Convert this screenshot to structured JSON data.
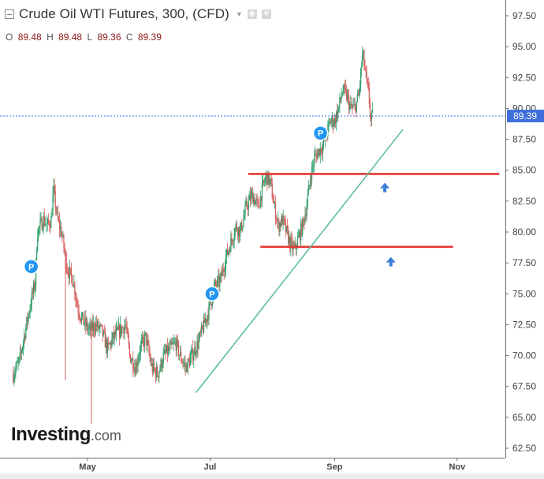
{
  "header": {
    "title": "Crude Oil WTI Futures, 300, (CFD)",
    "ohlc": [
      {
        "key": "O",
        "value": "89.48"
      },
      {
        "key": "H",
        "value": "89.48"
      },
      {
        "key": "L",
        "value": "89.36"
      },
      {
        "key": "C",
        "value": "89.39"
      }
    ]
  },
  "branding": {
    "name": "Investing",
    "suffix": ".com"
  },
  "colors": {
    "up": "#2e9e6a",
    "down": "#d65b5b",
    "support": "#e53935",
    "trendline": "#5dbf9c",
    "price_line": "#3f6fd8",
    "price_badge": "#3f6fd8",
    "arrow": "#3d7ed8",
    "marker": "#2196f3"
  },
  "chart_data": {
    "type": "candlestick",
    "ylim": [
      62.5,
      97.5
    ],
    "y_ticks": [
      "62.50",
      "65.00",
      "67.50",
      "70.00",
      "72.50",
      "75.00",
      "77.50",
      "80.00",
      "82.50",
      "85.00",
      "87.50",
      "90.00",
      "92.50",
      "95.00",
      "97.50"
    ],
    "x_ticks": [
      {
        "label": "May",
        "day": 0
      },
      {
        "label": "Jul",
        "day": 61
      },
      {
        "label": "Sep",
        "day": 123
      },
      {
        "label": "Nov",
        "day": 184
      }
    ],
    "x_range_days": [
      -37,
      205
    ],
    "last_price": {
      "value": 89.39,
      "label": "89.39"
    },
    "price_path": [
      [
        -37,
        68.5
      ],
      [
        -34,
        69.5
      ],
      [
        -31,
        72.0
      ],
      [
        -28,
        74.5
      ],
      [
        -26,
        76.0
      ],
      [
        -25,
        80.0
      ],
      [
        -22,
        81.0
      ],
      [
        -20,
        80.5
      ],
      [
        -18,
        81.0
      ],
      [
        -17,
        83.5
      ],
      [
        -15,
        81.0
      ],
      [
        -13,
        80.0
      ],
      [
        -10,
        77.0
      ],
      [
        -7,
        76.0
      ],
      [
        -5,
        74.0
      ],
      [
        -3,
        73.0
      ],
      [
        -1,
        72.5
      ],
      [
        1,
        72.0
      ],
      [
        4,
        72.5
      ],
      [
        7,
        72.0
      ],
      [
        10,
        70.5
      ],
      [
        13,
        71.5
      ],
      [
        16,
        72.0
      ],
      [
        19,
        72.5
      ],
      [
        21,
        70.0
      ],
      [
        24,
        69.0
      ],
      [
        26,
        70.5
      ],
      [
        29,
        71.5
      ],
      [
        32,
        69.0
      ],
      [
        35,
        68.5
      ],
      [
        38,
        70.0
      ],
      [
        41,
        70.5
      ],
      [
        44,
        71.0
      ],
      [
        46,
        70.0
      ],
      [
        49,
        69.0
      ],
      [
        52,
        70.0
      ],
      [
        55,
        71.0
      ],
      [
        58,
        72.5
      ],
      [
        61,
        74.0
      ],
      [
        63,
        75.5
      ],
      [
        66,
        76.0
      ],
      [
        69,
        78.0
      ],
      [
        71,
        79.0
      ],
      [
        74,
        80.5
      ],
      [
        76,
        80.0
      ],
      [
        79,
        82.0
      ],
      [
        82,
        83.0
      ],
      [
        85,
        82.0
      ],
      [
        87,
        83.5
      ],
      [
        89,
        84.5
      ],
      [
        91,
        84.0
      ],
      [
        93,
        82.0
      ],
      [
        95,
        80.5
      ],
      [
        97,
        81.0
      ],
      [
        99,
        80.0
      ],
      [
        101,
        79.0
      ],
      [
        103,
        78.5
      ],
      [
        105,
        79.5
      ],
      [
        107,
        80.5
      ],
      [
        109,
        82.0
      ],
      [
        111,
        84.5
      ],
      [
        113,
        86.0
      ],
      [
        115,
        86.5
      ],
      [
        117,
        87.0
      ],
      [
        119,
        88.0
      ],
      [
        121,
        89.0
      ],
      [
        123,
        89.0
      ],
      [
        125,
        90.0
      ],
      [
        127,
        91.5
      ],
      [
        129,
        91.0
      ],
      [
        131,
        90.0
      ],
      [
        133,
        90.0
      ],
      [
        135,
        91.0
      ],
      [
        137,
        94.5
      ],
      [
        139,
        92.0
      ],
      [
        140,
        91.0
      ],
      [
        141,
        89.0
      ],
      [
        142,
        89.39
      ]
    ],
    "candle_style": {
      "spread": 1.2,
      "wick": 0.7
    },
    "spikes": [
      {
        "day": -11,
        "low": 68.0
      },
      {
        "day": 2,
        "low": 64.5
      }
    ],
    "horizontal_lines": [
      {
        "name": "resistance-support",
        "value": 84.7,
        "from_day": 80,
        "to_day": 205
      },
      {
        "name": "support",
        "value": 78.8,
        "from_day": 86,
        "to_day": 182
      }
    ],
    "trendlines": [
      {
        "from": [
          54,
          67.0
        ],
        "to": [
          157,
          88.3
        ]
      }
    ],
    "markers": [
      {
        "label": "P",
        "day": -28,
        "value": 77.2
      },
      {
        "label": "P",
        "day": 62,
        "value": 75.0
      },
      {
        "label": "P",
        "day": 116,
        "value": 88.0
      }
    ],
    "arrows": [
      {
        "direction": "up",
        "day": 148,
        "value": 83.6
      },
      {
        "direction": "up",
        "day": 151,
        "value": 77.6
      }
    ],
    "grid": false
  }
}
